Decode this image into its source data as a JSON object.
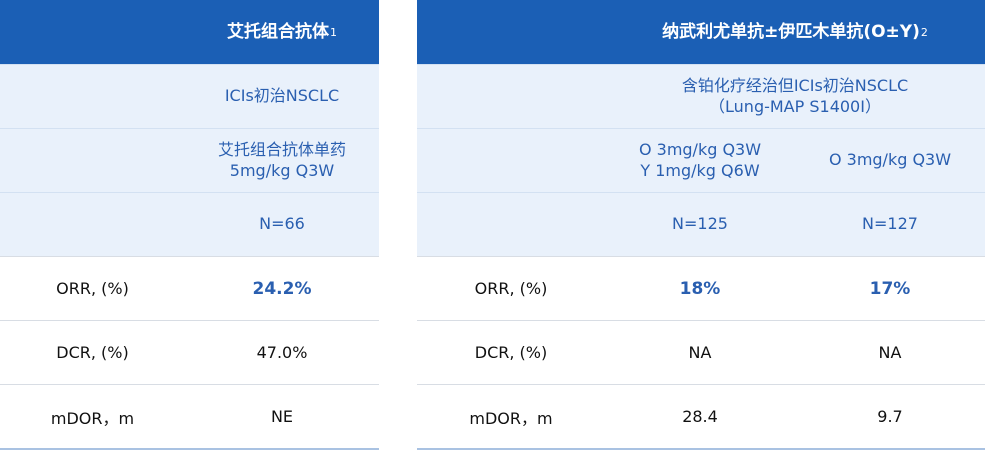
{
  "left": {
    "header": {
      "title": "艾托组合抗体",
      "sup": "1"
    },
    "population": "ICIs初治NSCLC",
    "regimen": [
      "艾托组合抗体单药",
      "5mg/kg Q3W"
    ],
    "n": "N=66",
    "rows": [
      {
        "label": "ORR, (%)",
        "value": "24.2%"
      },
      {
        "label": "DCR, (%)",
        "value": "47.0%"
      },
      {
        "label": "mDOR，m",
        "value": "NE"
      }
    ]
  },
  "right": {
    "header": {
      "title": "纳武利尤单抗±伊匹木单抗(O±Y)",
      "sup": "2"
    },
    "population": [
      "含铂化疗经治但ICIs初治NSCLC",
      "（Lung-MAP S1400I）"
    ],
    "regimens": [
      [
        "O 3mg/kg Q3W",
        "Y 1mg/kg Q6W"
      ],
      [
        "O 3mg/kg Q3W"
      ]
    ],
    "n": [
      "N=125",
      "N=127"
    ],
    "rows": [
      {
        "label": "ORR, (%)",
        "values": [
          "18%",
          "17%"
        ]
      },
      {
        "label": "DCR, (%)",
        "values": [
          "NA",
          "NA"
        ]
      },
      {
        "label": "mDOR，m",
        "values": [
          "28.4",
          "9.7"
        ]
      }
    ]
  },
  "colors": {
    "header_bg": "#1b5fb5",
    "subrow_bg": "#e9f1fb",
    "accent_text": "#2a5fb0"
  }
}
